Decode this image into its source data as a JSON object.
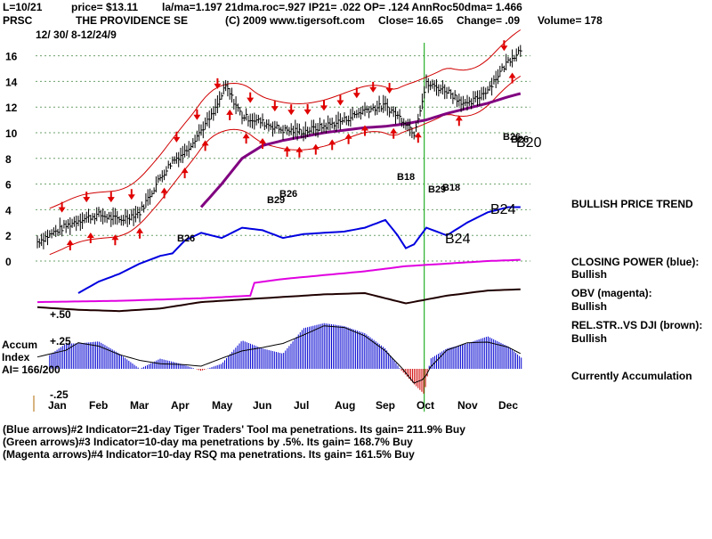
{
  "header": {
    "line1_date": "L=10/21",
    "line1_price": "price= $13.11",
    "line1_stats": "la/ma=1.197 21dma.roc=.927 IP21= .022 OP= .124 AnnRoc50dma= 1.466",
    "ticker": "PRSC",
    "company": "THE PROVIDENCE SE",
    "copyright": "(C) 2009 www.tigersoft.com",
    "close": "Close=  16.65",
    "change": "Change= .09",
    "volume": "Volume= 178",
    "range": "12/ 30/ 8-12/24/9"
  },
  "sidebar": {
    "trend": "BULLISH PRICE TREND",
    "cp_label": "CLOSING POWER (blue):",
    "cp_value": "Bullish",
    "obv_label": "OBV (magenta):",
    "obv_value": "Bullish",
    "rel_label": "REL.STR..VS DJI (brown):",
    "rel_value": "Bullish",
    "accum_status": "Currently Accumulation"
  },
  "notes": [
    "(Blue arrows)#2 Indicator=21-day Tiger Traders' Tool ma penetrations. Its gain= 211.9% Buy",
    "(Green arrows)#3 Indicator=10-day ma penetrations by .5%. Its gain= 168.7% Buy",
    "(Magenta arrows)#4 Indicator=10-day RSQ ma penetrations. Its gain= 161.5% Buy"
  ],
  "chart_data": {
    "type": "line",
    "title": "PRSC THE PROVIDENCE SE",
    "x_labels": [
      "Jan",
      "Feb",
      "Mar",
      "Apr",
      "May",
      "Jun",
      "Jul",
      "Aug",
      "Sep",
      "Oct",
      "Nov",
      "Dec"
    ],
    "y_ticks": [
      0,
      2,
      4,
      6,
      8,
      10,
      12,
      14,
      16
    ],
    "ylim": [
      0,
      17
    ],
    "accum_labels": {
      "title1": "Accum",
      "title2": "Index",
      "ai": "AI= 166/200",
      "p50": "+.50",
      "p25": "+.25",
      "m25": "-.25"
    },
    "price": {
      "name": "Price",
      "months": [
        0,
        0.5,
        1,
        1.5,
        2,
        2.5,
        3,
        3.3,
        3.6,
        4,
        4.3,
        4.6,
        5,
        5.5,
        6,
        6.5,
        7,
        7.5,
        8,
        8.5,
        9,
        9.2,
        9.5,
        10,
        10.5,
        11,
        11.5,
        11.85
      ],
      "values": [
        1.5,
        2.4,
        3.2,
        3.6,
        3.2,
        3.8,
        6.5,
        7.8,
        8.5,
        10.2,
        11.5,
        13.6,
        11.3,
        10.8,
        10.2,
        10.1,
        10.5,
        11.0,
        11.8,
        12.1,
        10.8,
        10.0,
        13.8,
        13.3,
        12.1,
        13.4,
        15.6,
        16.65
      ]
    },
    "ma50": {
      "name": "50-day MA",
      "months": [
        4,
        4.5,
        5,
        5.5,
        6,
        6.5,
        7,
        7.5,
        8,
        8.5,
        9,
        9.5,
        10,
        10.5,
        11,
        11.5,
        11.85
      ],
      "values": [
        4.2,
        6.0,
        8.0,
        9.0,
        9.4,
        9.7,
        10.0,
        10.2,
        10.4,
        10.5,
        10.7,
        11.0,
        11.5,
        11.9,
        12.3,
        12.8,
        13.1
      ]
    },
    "closing_power": {
      "name": "Closing Power (blue)",
      "months": [
        1,
        1.5,
        2,
        2.5,
        3,
        3.3,
        3.6,
        4,
        4.5,
        5,
        5.5,
        6,
        6.5,
        7,
        7.5,
        8,
        8.5,
        8.8,
        9,
        9.2,
        9.5,
        10,
        10.5,
        11,
        11.5,
        11.85
      ],
      "values": [
        -2.5,
        -1.6,
        -1.0,
        -0.2,
        0.4,
        0.6,
        1.6,
        2.2,
        1.8,
        2.6,
        2.4,
        1.8,
        2.1,
        2.2,
        2.3,
        2.6,
        3.2,
        2.0,
        1.0,
        1.3,
        2.6,
        2.0,
        3.0,
        3.8,
        4.2,
        4.2
      ]
    },
    "obv": {
      "name": "OBV (magenta)",
      "months": [
        0,
        2,
        4,
        5.2,
        5.3,
        6,
        7,
        8,
        9,
        10,
        11,
        11.85
      ],
      "values": [
        -3.2,
        -3.1,
        -2.9,
        -2.7,
        -1.7,
        -1.4,
        -1.1,
        -0.8,
        -0.4,
        -0.2,
        0.0,
        0.1
      ]
    },
    "rel_strength": {
      "name": "Rel. Str. vs DJI (brown)",
      "months": [
        0,
        1,
        2,
        3,
        4,
        5,
        6,
        7,
        8,
        9,
        10,
        11,
        11.85
      ],
      "values": [
        -3.6,
        -3.8,
        -3.9,
        -3.7,
        -3.2,
        -3.0,
        -2.8,
        -2.6,
        -2.5,
        -3.3,
        -2.7,
        -2.3,
        -2.2
      ]
    },
    "accum": {
      "name": "Accumulation Index",
      "months": [
        0,
        0.7,
        1,
        1.5,
        2,
        2.5,
        3,
        3.5,
        4,
        4.5,
        5,
        5.5,
        6,
        6.5,
        7,
        7.5,
        8,
        8.5,
        8.9,
        9.2,
        9.45,
        9.6,
        10,
        10.5,
        11,
        11.5,
        11.85
      ],
      "values": [
        0.05,
        0.25,
        0.25,
        0.27,
        0.15,
        0.0,
        0.1,
        0.05,
        -0.02,
        0.05,
        0.28,
        0.2,
        0.15,
        0.4,
        0.45,
        0.42,
        0.35,
        0.2,
        -0.02,
        -0.15,
        -0.25,
        0.1,
        0.2,
        0.25,
        0.32,
        0.22,
        0.1
      ]
    },
    "markers": [
      "B26",
      "B29",
      "B26",
      "B26",
      "B18",
      "B29",
      "B18",
      "B24",
      "B24",
      "B26",
      "B20"
    ],
    "signal_month": 9.45
  }
}
